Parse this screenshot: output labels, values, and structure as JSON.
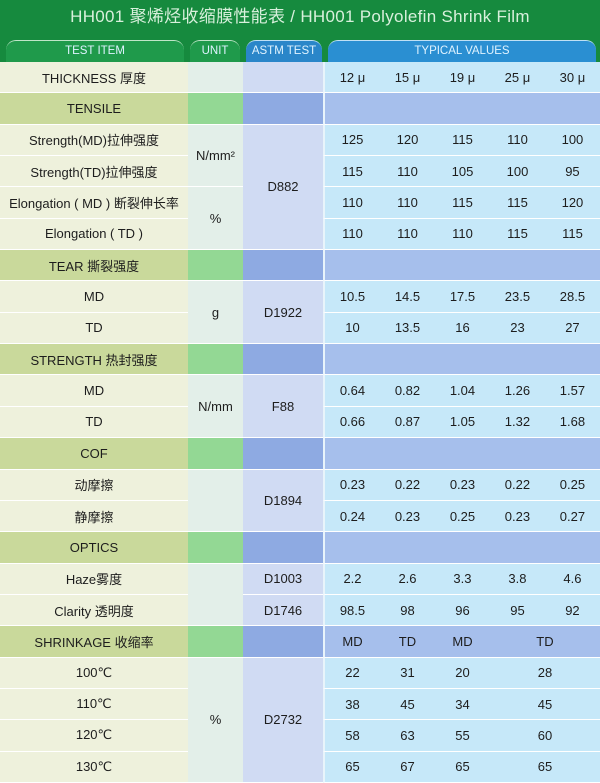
{
  "title": "HH001 聚烯烃收缩膜性能表 / HH001 Polyolefin Shrink Film",
  "headers": {
    "item": "TEST ITEM",
    "unit": "UNIT",
    "astm": "ASTM TEST",
    "values": "TYPICAL VALUES"
  },
  "colors": {
    "title_bar": "#168a3e",
    "section_row": "#c9d99b",
    "values_bg": "#c6e8f9"
  },
  "rows": [
    {
      "item": "THICKNESS 厚度",
      "values": [
        "12 μ",
        "15 μ",
        "19 μ",
        "25 μ",
        "30 μ"
      ]
    },
    {
      "item": "TENSILE",
      "section": true,
      "values": []
    },
    {
      "item": "Strength(MD)拉伸强度",
      "values": [
        "125",
        "120",
        "115",
        "110",
        "100"
      ]
    },
    {
      "item": "Strength(TD)拉伸强度",
      "values": [
        "115",
        "110",
        "105",
        "100",
        "95"
      ]
    },
    {
      "item": "Elongation ( MD ) 断裂伸长率",
      "values": [
        "110",
        "110",
        "115",
        "115",
        "120"
      ]
    },
    {
      "item": "Elongation ( TD )",
      "values": [
        "110",
        "110",
        "110",
        "115",
        "115"
      ]
    },
    {
      "item": "TEAR 撕裂强度",
      "section": true,
      "values": []
    },
    {
      "item": "MD",
      "values": [
        "10.5",
        "14.5",
        "17.5",
        "23.5",
        "28.5"
      ]
    },
    {
      "item": "TD",
      "values": [
        "10",
        "13.5",
        "16",
        "23",
        "27"
      ]
    },
    {
      "item": "STRENGTH 热封强度",
      "section": true,
      "values": []
    },
    {
      "item": "MD",
      "values": [
        "0.64",
        "0.82",
        "1.04",
        "1.26",
        "1.57"
      ]
    },
    {
      "item": "TD",
      "values": [
        "0.66",
        "0.87",
        "1.05",
        "1.32",
        "1.68"
      ]
    },
    {
      "item": "COF",
      "section": true,
      "values": []
    },
    {
      "item": "动摩擦",
      "values": [
        "0.23",
        "0.22",
        "0.23",
        "0.22",
        "0.25"
      ]
    },
    {
      "item": "静摩擦",
      "values": [
        "0.24",
        "0.23",
        "0.25",
        "0.23",
        "0.27"
      ]
    },
    {
      "item": "OPTICS",
      "section": true,
      "values": []
    },
    {
      "item": "Haze雾度",
      "values": [
        "2.2",
        "2.6",
        "3.3",
        "3.8",
        "4.6"
      ]
    },
    {
      "item": "Clarity  透明度",
      "values": [
        "98.5",
        "98",
        "96",
        "95",
        "92"
      ]
    },
    {
      "item": "SHRINKAGE 收缩率",
      "section": true,
      "shrink": true,
      "values": [
        "MD",
        "TD",
        "MD",
        "TD"
      ]
    },
    {
      "item": "100℃",
      "shrink": true,
      "values": [
        "22",
        "31",
        "20",
        "28"
      ]
    },
    {
      "item": "110℃",
      "shrink": true,
      "values": [
        "38",
        "45",
        "34",
        "45"
      ]
    },
    {
      "item": "120℃",
      "shrink": true,
      "values": [
        "58",
        "63",
        "55",
        "60"
      ]
    },
    {
      "item": "130℃",
      "shrink": true,
      "values": [
        "65",
        "67",
        "65",
        "65"
      ]
    }
  ],
  "units": [
    {
      "text": "N/mm²",
      "from": 2,
      "to": 3
    },
    {
      "text": "%",
      "from": 4,
      "to": 5
    },
    {
      "text": "g",
      "from": 7,
      "to": 8
    },
    {
      "text": "N/mm",
      "from": 10,
      "to": 11
    },
    {
      "text": "",
      "from": 13,
      "to": 14
    },
    {
      "text": "",
      "from": 16,
      "to": 17
    },
    {
      "text": "%",
      "from": 19,
      "to": 22
    }
  ],
  "astm": [
    {
      "text": "D882",
      "from": 2,
      "to": 5
    },
    {
      "text": "D1922",
      "from": 7,
      "to": 8
    },
    {
      "text": "F88",
      "from": 10,
      "to": 11
    },
    {
      "text": "D1894",
      "from": 13,
      "to": 14
    },
    {
      "text": "D1003",
      "from": 16,
      "to": 16
    },
    {
      "text": "D1746",
      "from": 17,
      "to": 17
    },
    {
      "text": "D2732",
      "from": 19,
      "to": 22
    }
  ]
}
